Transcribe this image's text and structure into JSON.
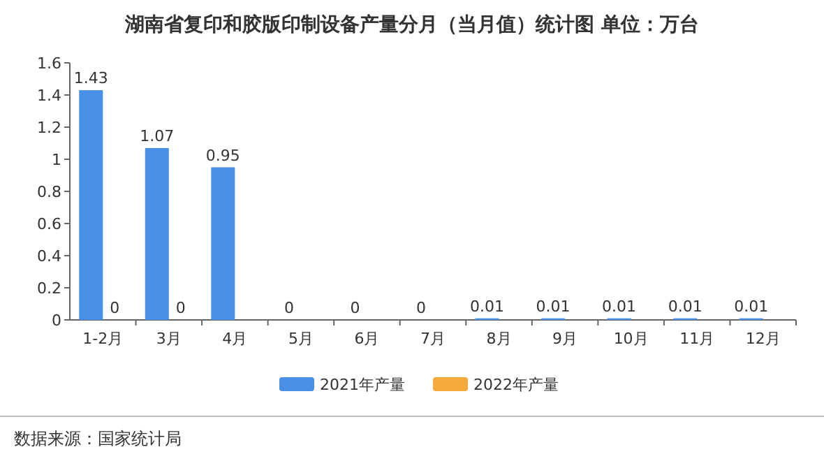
{
  "chart_data": {
    "type": "bar",
    "title": "湖南省复印和胶版印制设备产量分月（当月值）统计图 单位：万台",
    "categories": [
      "1-2月",
      "3月",
      "4月",
      "5月",
      "6月",
      "7月",
      "8月",
      "9月",
      "10月",
      "11月",
      "12月"
    ],
    "series": [
      {
        "name": "2021年产量",
        "color": "#4a8fe7",
        "values": [
          1.43,
          1.07,
          0.95,
          0,
          0,
          0,
          0.01,
          0.01,
          0.01,
          0.01,
          0.01
        ]
      },
      {
        "name": "2022年产量",
        "color": "#f5a93a",
        "values": [
          0,
          0,
          null,
          null,
          null,
          null,
          null,
          null,
          null,
          null,
          null
        ]
      }
    ],
    "ylim": [
      0,
      1.6
    ],
    "yticks": [
      0,
      0.2,
      0.4,
      0.6,
      0.8,
      1,
      1.2,
      1.4,
      1.6
    ],
    "data_labels": true,
    "legend": "bottom",
    "annotations": [
      "数据来源：国家统计局"
    ]
  }
}
